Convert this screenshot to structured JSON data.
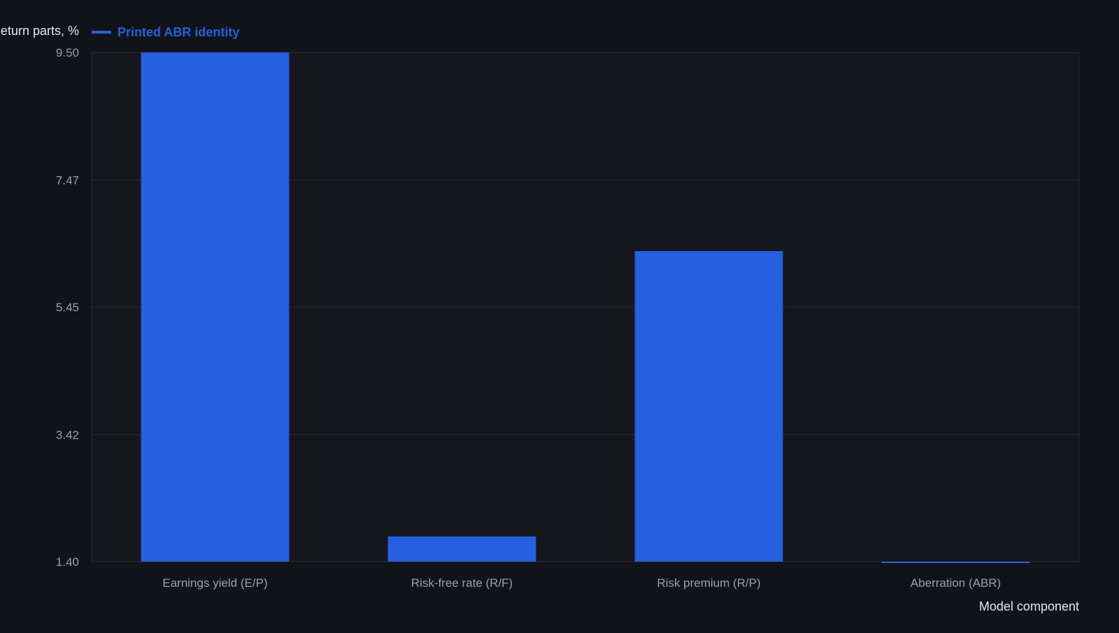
{
  "colors": {
    "background": "#111318",
    "plot_background": "#15171c",
    "grid": "#262a32",
    "axis_text": "#9aa0aa",
    "label_text": "#e6e8ec",
    "bar": "#2560e0"
  },
  "chart_data": {
    "type": "bar",
    "ylabel": "Return parts, %",
    "xlabel": "Model component",
    "legend": {
      "label": "Printed ABR identity",
      "placement": "top-left"
    },
    "categories": [
      "Earnings yield (E/P)",
      "Risk-free rate (R/F)",
      "Risk premium (R/P)",
      "Aberration (ABR)"
    ],
    "series": [
      {
        "name": "Printed ABR identity",
        "values": [
          9.5,
          1.8,
          6.34,
          1.38
        ]
      }
    ],
    "ylim": [
      1.4,
      9.5
    ],
    "yticks": [
      "1.40",
      "3.42",
      "5.45",
      "7.47",
      "9.50"
    ],
    "grid": true
  }
}
